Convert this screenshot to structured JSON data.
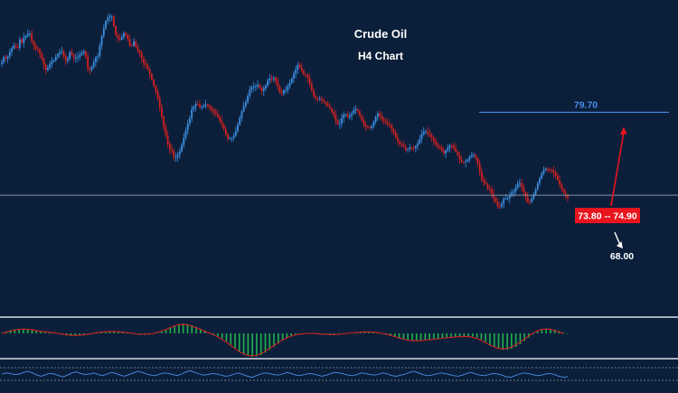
{
  "colors": {
    "background": "#0b1f3a",
    "bull": "#3d8fe0",
    "bear": "#d42020",
    "level_line": "#4c8ee8",
    "price_line": "#9aa3b0",
    "target_box": "#e8141e",
    "macd_hist": "#1fb24a",
    "macd_signal": "#d42020",
    "rsi_line": "#4c8ee8",
    "text": "#ffffff"
  },
  "chart_data": {
    "type": "candlestick",
    "title": "Crude Oil",
    "subtitle": "H4 Chart",
    "xlabel": "",
    "ylabel": "",
    "grid": false,
    "ylim": [
      66.2,
      86.6
    ],
    "close_series": [
      83.1,
      83.46,
      83.37,
      83.49,
      83.82,
      84.04,
      84.21,
      84.15,
      84.08,
      84.66,
      84.42,
      84.79,
      84.88,
      85.02,
      85.06,
      84.53,
      84.25,
      84.0,
      83.97,
      83.68,
      83.36,
      82.93,
      82.58,
      82.73,
      82.95,
      83.19,
      83.22,
      83.47,
      83.67,
      83.77,
      83.83,
      83.51,
      83.21,
      83.33,
      83.77,
      83.62,
      83.39,
      83.41,
      83.46,
      83.6,
      83.72,
      83.83,
      83.48,
      82.7,
      82.59,
      82.81,
      83.11,
      83.44,
      83.54,
      84.25,
      84.89,
      85.4,
      85.92,
      86.14,
      86.19,
      86.22,
      85.56,
      84.94,
      84.74,
      84.65,
      84.82,
      85.08,
      84.96,
      84.68,
      84.24,
      84.23,
      84.52,
      84.16,
      83.91,
      83.71,
      83.36,
      83.03,
      82.91,
      82.64,
      82.3,
      81.91,
      81.52,
      81.14,
      80.65,
      80.06,
      79.39,
      78.71,
      78.13,
      77.56,
      77.19,
      77.06,
      76.64,
      76.66,
      76.82,
      77.04,
      77.47,
      77.95,
      78.45,
      78.93,
      79.28,
      79.88,
      80.09,
      80.27,
      80.26,
      80.05,
      80.06,
      80.15,
      80.23,
      80.15,
      80.02,
      79.86,
      79.74,
      79.59,
      79.4,
      79.13,
      78.89,
      78.57,
      78.19,
      77.91,
      77.92,
      77.95,
      78.1,
      78.41,
      78.85,
      79.31,
      79.76,
      80.12,
      80.38,
      80.82,
      81.24,
      81.41,
      81.47,
      81.48,
      81.58,
      81.37,
      81.15,
      81.31,
      81.51,
      81.86,
      82.0,
      81.97,
      82.05,
      81.81,
      81.45,
      81.09,
      80.99,
      81.19,
      81.21,
      81.46,
      81.71,
      82.0,
      82.33,
      82.61,
      82.93,
      82.75,
      82.53,
      82.29,
      82.22,
      82.05,
      81.62,
      81.16,
      80.78,
      80.66,
      80.6,
      80.61,
      80.52,
      80.41,
      80.28,
      80.13,
      79.97,
      79.73,
      79.52,
      79.14,
      78.89,
      78.94,
      79.31,
      79.53,
      79.56,
      79.36,
      79.46,
      79.62,
      79.84,
      79.92,
      79.77,
      79.49,
      79.18,
      78.88,
      78.72,
      78.7,
      78.62,
      78.76,
      79.06,
      79.4,
      79.62,
      79.43,
      79.27,
      79.13,
      78.99,
      78.86,
      78.79,
      78.57,
      78.33,
      77.99,
      77.73,
      77.57,
      77.5,
      77.35,
      77.14,
      77.19,
      77.31,
      77.29,
      77.25,
      77.41,
      77.6,
      77.89,
      78.2,
      78.37,
      78.4,
      78.27,
      78.15,
      77.99,
      77.74,
      77.55,
      77.39,
      77.34,
      77.08,
      76.92,
      77.11,
      77.29,
      77.44,
      77.43,
      77.26,
      77.04,
      76.76,
      76.48,
      76.31,
      76.3,
      76.37,
      76.5,
      76.68,
      76.78,
      76.81,
      76.61,
      76.22,
      75.63,
      75.11,
      74.93,
      74.82,
      74.53,
      74.48,
      74.16,
      73.85,
      73.62,
      73.3,
      73.27,
      73.49,
      73.81,
      73.83,
      73.85,
      74.03,
      74.21,
      74.34,
      74.58,
      74.84,
      74.89,
      74.61,
      74.27,
      73.91,
      73.6,
      73.59,
      73.83,
      74.11,
      74.46,
      74.88,
      75.2,
      75.51,
      75.76,
      75.87,
      75.8,
      75.79,
      75.77,
      75.6,
      75.37,
      75.1,
      74.79,
      74.48,
      74.22,
      74.02,
      73.88
    ],
    "annotations": {
      "resistance": 79.7,
      "current_price": 74.06,
      "range_label": "73.80 -- 74.90",
      "target_label": "68.00"
    },
    "macd_histogram": [
      0.02,
      0.08,
      0.14,
      0.18,
      0.2,
      0.2,
      0.18,
      0.14,
      0.1,
      0.08,
      0.07,
      0.06,
      0.04,
      0.0,
      -0.05,
      -0.09,
      -0.11,
      -0.11,
      -0.09,
      -0.06,
      -0.03,
      0.0,
      0.03,
      0.06,
      0.08,
      0.09,
      0.09,
      0.08,
      0.06,
      0.03,
      0.0,
      -0.03,
      -0.05,
      -0.06,
      -0.05,
      -0.02,
      0.02,
      0.08,
      0.16,
      0.25,
      0.34,
      0.4,
      0.42,
      0.4,
      0.35,
      0.28,
      0.2,
      0.12,
      0.04,
      -0.04,
      -0.12,
      -0.22,
      -0.34,
      -0.48,
      -0.62,
      -0.76,
      -0.88,
      -0.96,
      -1.0,
      -0.98,
      -0.92,
      -0.82,
      -0.7,
      -0.56,
      -0.42,
      -0.3,
      -0.2,
      -0.12,
      -0.06,
      -0.02,
      0.0,
      0.02,
      0.02,
      0.0,
      -0.02,
      -0.04,
      -0.05,
      -0.05,
      -0.04,
      -0.02,
      0.0,
      0.02,
      0.04,
      0.06,
      0.07,
      0.07,
      0.06,
      0.04,
      0.01,
      -0.03,
      -0.08,
      -0.14,
      -0.2,
      -0.26,
      -0.3,
      -0.32,
      -0.33,
      -0.32,
      -0.3,
      -0.28,
      -0.26,
      -0.24,
      -0.22,
      -0.2,
      -0.18,
      -0.16,
      -0.14,
      -0.12,
      -0.12,
      -0.14,
      -0.18,
      -0.26,
      -0.36,
      -0.48,
      -0.58,
      -0.66,
      -0.7,
      -0.7,
      -0.66,
      -0.58,
      -0.46,
      -0.32,
      -0.18,
      -0.04,
      0.08,
      0.16,
      0.2,
      0.2,
      0.16,
      0.1,
      0.04,
      -0.02
    ],
    "macd_signal": [
      0.0,
      0.05,
      0.1,
      0.14,
      0.17,
      0.18,
      0.17,
      0.15,
      0.12,
      0.09,
      0.07,
      0.05,
      0.03,
      0.0,
      -0.03,
      -0.06,
      -0.08,
      -0.09,
      -0.08,
      -0.06,
      -0.03,
      0.0,
      0.03,
      0.05,
      0.07,
      0.08,
      0.08,
      0.07,
      0.05,
      0.03,
      0.01,
      -0.02,
      -0.04,
      -0.04,
      -0.03,
      0.0,
      0.04,
      0.1,
      0.17,
      0.25,
      0.32,
      0.37,
      0.38,
      0.36,
      0.31,
      0.24,
      0.17,
      0.09,
      0.02,
      -0.06,
      -0.15,
      -0.26,
      -0.38,
      -0.52,
      -0.65,
      -0.78,
      -0.88,
      -0.94,
      -0.96,
      -0.93,
      -0.86,
      -0.76,
      -0.64,
      -0.52,
      -0.4,
      -0.28,
      -0.19,
      -0.12,
      -0.06,
      -0.03,
      -0.01,
      0.0,
      0.0,
      -0.01,
      -0.03,
      -0.04,
      -0.05,
      -0.05,
      -0.04,
      -0.02,
      0.0,
      0.02,
      0.04,
      0.05,
      0.06,
      0.06,
      0.05,
      0.03,
      0.0,
      -0.04,
      -0.09,
      -0.14,
      -0.2,
      -0.25,
      -0.29,
      -0.31,
      -0.32,
      -0.31,
      -0.29,
      -0.27,
      -0.25,
      -0.23,
      -0.21,
      -0.19,
      -0.17,
      -0.15,
      -0.14,
      -0.13,
      -0.14,
      -0.17,
      -0.22,
      -0.3,
      -0.4,
      -0.5,
      -0.58,
      -0.64,
      -0.66,
      -0.64,
      -0.58,
      -0.49,
      -0.37,
      -0.24,
      -0.11,
      0.01,
      0.11,
      0.17,
      0.19,
      0.17,
      0.12,
      0.06,
      0.0
    ],
    "rsi": [
      50,
      52,
      51,
      49,
      50,
      53,
      55,
      52,
      48,
      46,
      49,
      51,
      50,
      47,
      45,
      48,
      52,
      54,
      51,
      49,
      50,
      52,
      49,
      47,
      50,
      53,
      51,
      48,
      46,
      49,
      52,
      55,
      53,
      50,
      48,
      47,
      50,
      52,
      51,
      49,
      47,
      50,
      54,
      56,
      53,
      50,
      48,
      49,
      51,
      50,
      48,
      46,
      47,
      50,
      52,
      49,
      46,
      44,
      47,
      50,
      52,
      51,
      49,
      48,
      50,
      53,
      51,
      48,
      47,
      49,
      51,
      50,
      48,
      46,
      48,
      51,
      53,
      52,
      50,
      48,
      47,
      49,
      52,
      51,
      49,
      48,
      50,
      52,
      50,
      47,
      46,
      48,
      50,
      53,
      55,
      52,
      49,
      47,
      48,
      50,
      52,
      51,
      49,
      47,
      46,
      48,
      51,
      53,
      50,
      48,
      47,
      49,
      51,
      50,
      48,
      45,
      44,
      47,
      50,
      52,
      51,
      49,
      47,
      48,
      50,
      51,
      49,
      46,
      44,
      45
    ]
  }
}
